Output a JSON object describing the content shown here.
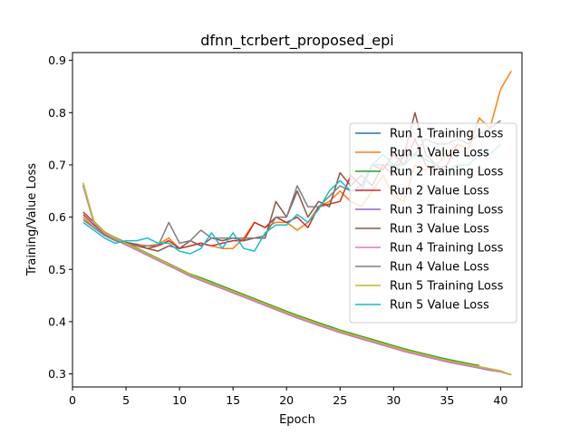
{
  "chart_data": {
    "type": "line",
    "title": "dfnn_tcrbert_proposed_epi",
    "xlabel": "Epoch",
    "ylabel": "Training/Value Loss",
    "xlim": [
      0,
      42
    ],
    "ylim": [
      0.275,
      0.915
    ],
    "xticks": [
      0,
      5,
      10,
      15,
      20,
      25,
      30,
      35,
      40
    ],
    "yticks": [
      0.3,
      0.4,
      0.5,
      0.6,
      0.7,
      0.8,
      0.9
    ],
    "grid": false,
    "legend_position": "center-right",
    "series": [
      {
        "name": "Run 1 Training Loss",
        "color": "#1f77b4",
        "x": [
          1,
          2,
          3,
          4,
          5,
          6,
          7,
          8,
          9,
          10,
          11,
          12,
          13,
          14,
          15,
          16,
          17,
          18,
          19,
          20,
          21,
          22,
          23,
          24,
          25,
          26,
          27,
          28,
          29,
          30,
          31,
          32,
          33,
          34,
          35,
          36,
          37,
          38
        ],
        "y": [
          0.66,
          0.59,
          0.57,
          0.56,
          0.55,
          0.54,
          0.53,
          0.52,
          0.51,
          0.5,
          0.49,
          0.482,
          0.474,
          0.466,
          0.458,
          0.45,
          0.442,
          0.434,
          0.426,
          0.418,
          0.41,
          0.403,
          0.396,
          0.389,
          0.382,
          0.376,
          0.37,
          0.364,
          0.358,
          0.352,
          0.346,
          0.341,
          0.336,
          0.331,
          0.326,
          0.322,
          0.318,
          0.314
        ]
      },
      {
        "name": "Run 1 Value Loss",
        "color": "#ff7f0e",
        "x": [
          1,
          2,
          3,
          4,
          5,
          6,
          7,
          8,
          9,
          10,
          11,
          12,
          13,
          14,
          15,
          16,
          17,
          18,
          19,
          20,
          21,
          22,
          23,
          24,
          25,
          26,
          27,
          28,
          29,
          30,
          31,
          32,
          33,
          34,
          35,
          36,
          37,
          38,
          39,
          40,
          41
        ],
        "y": [
          0.6,
          0.58,
          0.565,
          0.56,
          0.55,
          0.548,
          0.545,
          0.548,
          0.56,
          0.54,
          0.545,
          0.55,
          0.545,
          0.54,
          0.54,
          0.56,
          0.59,
          0.58,
          0.59,
          0.59,
          0.575,
          0.59,
          0.62,
          0.63,
          0.65,
          0.63,
          0.62,
          0.65,
          0.68,
          0.64,
          0.63,
          0.7,
          0.69,
          0.7,
          0.72,
          0.74,
          0.73,
          0.79,
          0.77,
          0.845,
          0.88
        ]
      },
      {
        "name": "Run 2 Training Loss",
        "color": "#2ca02c",
        "x": [
          1,
          2,
          3,
          4,
          5,
          6,
          7,
          8,
          9,
          10,
          11,
          12,
          13,
          14,
          15,
          16,
          17,
          18,
          19,
          20,
          21,
          22,
          23,
          24,
          25,
          26,
          27,
          28,
          29,
          30,
          31,
          32,
          33,
          34,
          35,
          36,
          37,
          38
        ],
        "y": [
          0.662,
          0.592,
          0.572,
          0.561,
          0.551,
          0.541,
          0.531,
          0.521,
          0.511,
          0.501,
          0.491,
          0.484,
          0.476,
          0.468,
          0.46,
          0.452,
          0.444,
          0.436,
          0.428,
          0.42,
          0.412,
          0.405,
          0.398,
          0.391,
          0.384,
          0.378,
          0.372,
          0.366,
          0.36,
          0.354,
          0.348,
          0.343,
          0.338,
          0.333,
          0.328,
          0.324,
          0.32,
          0.316
        ]
      },
      {
        "name": "Run 2 Value Loss",
        "color": "#d62728",
        "x": [
          1,
          2,
          3,
          4,
          5,
          6,
          7,
          8,
          9,
          10,
          11,
          12,
          13,
          14,
          15,
          16,
          17,
          18,
          19,
          20,
          21,
          22,
          23,
          24,
          25,
          26,
          27,
          28,
          29,
          30,
          31,
          32,
          33,
          34,
          35,
          36
        ],
        "y": [
          0.61,
          0.59,
          0.57,
          0.56,
          0.55,
          0.545,
          0.54,
          0.545,
          0.555,
          0.54,
          0.545,
          0.55,
          0.545,
          0.55,
          0.555,
          0.555,
          0.59,
          0.58,
          0.6,
          0.59,
          0.6,
          0.58,
          0.62,
          0.625,
          0.63,
          0.68,
          0.66,
          0.7,
          0.69,
          0.72,
          0.7,
          0.75,
          0.7,
          0.69,
          0.7,
          0.74
        ]
      },
      {
        "name": "Run 3 Training Loss",
        "color": "#9467bd",
        "x": [
          1,
          2,
          3,
          4,
          5,
          6,
          7,
          8,
          9,
          10,
          11,
          12,
          13,
          14,
          15,
          16,
          17,
          18,
          19,
          20,
          21,
          22,
          23,
          24,
          25,
          26,
          27,
          28,
          29,
          30,
          31,
          32,
          33,
          34,
          35,
          36,
          37,
          38,
          39,
          40,
          41
        ],
        "y": [
          0.66,
          0.588,
          0.568,
          0.557,
          0.547,
          0.537,
          0.527,
          0.517,
          0.507,
          0.497,
          0.487,
          0.479,
          0.471,
          0.463,
          0.455,
          0.447,
          0.439,
          0.431,
          0.423,
          0.415,
          0.407,
          0.4,
          0.393,
          0.386,
          0.379,
          0.373,
          0.367,
          0.361,
          0.355,
          0.349,
          0.343,
          0.338,
          0.333,
          0.328,
          0.323,
          0.319,
          0.315,
          0.311,
          0.307,
          0.304,
          0.298
        ]
      },
      {
        "name": "Run 3 Value Loss",
        "color": "#8c564b",
        "x": [
          1,
          2,
          3,
          4,
          5,
          6,
          7,
          8,
          9,
          10,
          11,
          12,
          13,
          14,
          15,
          16,
          17,
          18,
          19,
          20,
          21,
          22,
          23,
          24,
          25,
          26,
          27,
          28,
          29,
          30,
          31,
          32,
          33,
          34,
          35
        ],
        "y": [
          0.605,
          0.585,
          0.568,
          0.56,
          0.552,
          0.548,
          0.54,
          0.535,
          0.545,
          0.54,
          0.555,
          0.545,
          0.56,
          0.555,
          0.56,
          0.555,
          0.56,
          0.56,
          0.63,
          0.6,
          0.65,
          0.6,
          0.63,
          0.62,
          0.685,
          0.66,
          0.68,
          0.66,
          0.7,
          0.68,
          0.72,
          0.8,
          0.72,
          0.7,
          0.68
        ]
      },
      {
        "name": "Run 4 Training Loss",
        "color": "#e377c2",
        "x": [
          1,
          2,
          3,
          4,
          5,
          6,
          7,
          8,
          9,
          10,
          11,
          12,
          13,
          14,
          15,
          16,
          17,
          18,
          19,
          20,
          21,
          22,
          23,
          24,
          25,
          26,
          27,
          28,
          29,
          30,
          31,
          32,
          33,
          34,
          35,
          36,
          37,
          38,
          39,
          40,
          41
        ],
        "y": [
          0.661,
          0.589,
          0.569,
          0.558,
          0.548,
          0.538,
          0.528,
          0.518,
          0.508,
          0.498,
          0.488,
          0.48,
          0.472,
          0.464,
          0.456,
          0.448,
          0.44,
          0.432,
          0.424,
          0.416,
          0.408,
          0.401,
          0.394,
          0.387,
          0.38,
          0.374,
          0.368,
          0.362,
          0.356,
          0.35,
          0.344,
          0.339,
          0.334,
          0.329,
          0.324,
          0.32,
          0.316,
          0.312,
          0.308,
          0.304,
          0.299
        ]
      },
      {
        "name": "Run 4 Value Loss",
        "color": "#7f7f7f",
        "x": [
          1,
          2,
          3,
          4,
          5,
          6,
          7,
          8,
          9,
          10,
          11,
          12,
          13,
          14,
          15,
          16,
          17,
          18,
          19,
          20,
          21,
          22,
          23,
          24,
          25,
          26,
          27,
          28,
          29,
          30,
          31,
          32,
          33,
          34,
          35,
          36,
          37,
          38,
          39,
          40
        ],
        "y": [
          0.595,
          0.58,
          0.565,
          0.555,
          0.55,
          0.545,
          0.545,
          0.545,
          0.59,
          0.55,
          0.555,
          0.575,
          0.56,
          0.56,
          0.56,
          0.56,
          0.56,
          0.565,
          0.6,
          0.6,
          0.66,
          0.62,
          0.62,
          0.64,
          0.66,
          0.65,
          0.66,
          0.7,
          0.7,
          0.7,
          0.72,
          0.72,
          0.75,
          0.74,
          0.74,
          0.75,
          0.74,
          0.76,
          0.77,
          0.785
        ]
      },
      {
        "name": "Run 5 Training Loss",
        "color": "#bcbd22",
        "x": [
          1,
          2,
          3,
          4,
          5,
          6,
          7,
          8,
          9,
          10,
          11,
          12,
          13,
          14,
          15,
          16,
          17,
          18,
          19,
          20,
          21,
          22,
          23,
          24,
          25,
          26,
          27,
          28,
          29,
          30,
          31,
          32,
          33,
          34,
          35,
          36,
          37,
          38,
          39,
          40,
          41
        ],
        "y": [
          0.666,
          0.592,
          0.572,
          0.56,
          0.55,
          0.54,
          0.53,
          0.52,
          0.51,
          0.5,
          0.49,
          0.482,
          0.474,
          0.466,
          0.458,
          0.45,
          0.442,
          0.434,
          0.426,
          0.418,
          0.41,
          0.403,
          0.396,
          0.389,
          0.382,
          0.376,
          0.37,
          0.364,
          0.358,
          0.352,
          0.346,
          0.341,
          0.336,
          0.331,
          0.326,
          0.322,
          0.318,
          0.314,
          0.31,
          0.306,
          0.298
        ]
      },
      {
        "name": "Run 5 Value Loss",
        "color": "#17becf",
        "x": [
          1,
          2,
          3,
          4,
          5,
          6,
          7,
          8,
          9,
          10,
          11,
          12,
          13,
          14,
          15,
          16,
          17,
          18,
          19,
          20,
          21,
          22,
          23,
          24,
          25,
          26,
          27,
          28,
          29,
          30,
          31,
          32,
          33,
          34,
          35,
          36,
          37,
          38,
          39,
          40
        ],
        "y": [
          0.59,
          0.575,
          0.56,
          0.55,
          0.555,
          0.555,
          0.56,
          0.55,
          0.55,
          0.535,
          0.53,
          0.54,
          0.57,
          0.54,
          0.57,
          0.54,
          0.535,
          0.57,
          0.585,
          0.585,
          0.605,
          0.59,
          0.615,
          0.65,
          0.67,
          0.65,
          0.65,
          0.7,
          0.72,
          0.7,
          0.7,
          0.72,
          0.71,
          0.7,
          0.69,
          0.7,
          0.7,
          0.72,
          0.72,
          0.74
        ]
      }
    ]
  }
}
